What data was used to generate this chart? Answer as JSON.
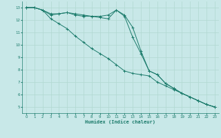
{
  "xlabel": "Humidex (Indice chaleur)",
  "bg_color": "#c8e8e8",
  "grid_color": "#b0d8d0",
  "line_color": "#1a7a6a",
  "xlim": [
    -0.5,
    23.5
  ],
  "ylim": [
    4.5,
    13.5
  ],
  "xticks": [
    0,
    1,
    2,
    3,
    4,
    5,
    6,
    7,
    8,
    9,
    10,
    11,
    12,
    13,
    14,
    15,
    16,
    17,
    18,
    19,
    20,
    21,
    22,
    23
  ],
  "yticks": [
    5,
    6,
    7,
    8,
    9,
    10,
    11,
    12,
    13
  ],
  "line1_x": [
    0,
    1,
    2,
    3,
    4,
    5,
    6,
    7,
    8,
    9,
    10,
    11,
    12,
    13,
    14,
    15,
    16,
    17,
    18,
    19,
    20,
    21,
    22,
    23
  ],
  "line1_y": [
    13.0,
    13.0,
    12.8,
    12.4,
    12.5,
    12.6,
    12.5,
    12.4,
    12.3,
    12.3,
    12.4,
    12.8,
    12.3,
    10.6,
    9.3,
    7.9,
    7.6,
    6.9,
    6.5,
    6.1,
    5.8,
    5.5,
    5.2,
    5.0
  ],
  "line2_x": [
    0,
    1,
    2,
    3,
    4,
    5,
    6,
    7,
    8,
    9,
    10,
    11,
    12,
    13,
    14,
    15,
    16,
    17,
    18,
    19,
    20,
    21,
    22,
    23
  ],
  "line2_y": [
    13.0,
    13.0,
    12.8,
    12.1,
    11.7,
    11.3,
    10.7,
    10.2,
    9.7,
    9.3,
    8.9,
    8.4,
    7.9,
    7.7,
    7.6,
    7.5,
    7.0,
    6.7,
    6.4,
    6.1,
    5.8,
    5.5,
    5.2,
    5.0
  ],
  "line3_x": [
    0,
    1,
    2,
    3,
    4,
    5,
    6,
    7,
    8,
    9,
    10,
    11,
    12,
    13,
    14,
    15,
    16,
    17,
    18,
    19,
    20,
    21,
    22,
    23
  ],
  "line3_y": [
    13.0,
    13.0,
    12.8,
    12.5,
    12.5,
    12.6,
    12.4,
    12.3,
    12.3,
    12.2,
    12.1,
    12.8,
    12.4,
    11.4,
    9.5,
    7.9,
    7.6,
    6.9,
    6.5,
    6.1,
    5.8,
    5.5,
    5.2,
    5.0
  ]
}
